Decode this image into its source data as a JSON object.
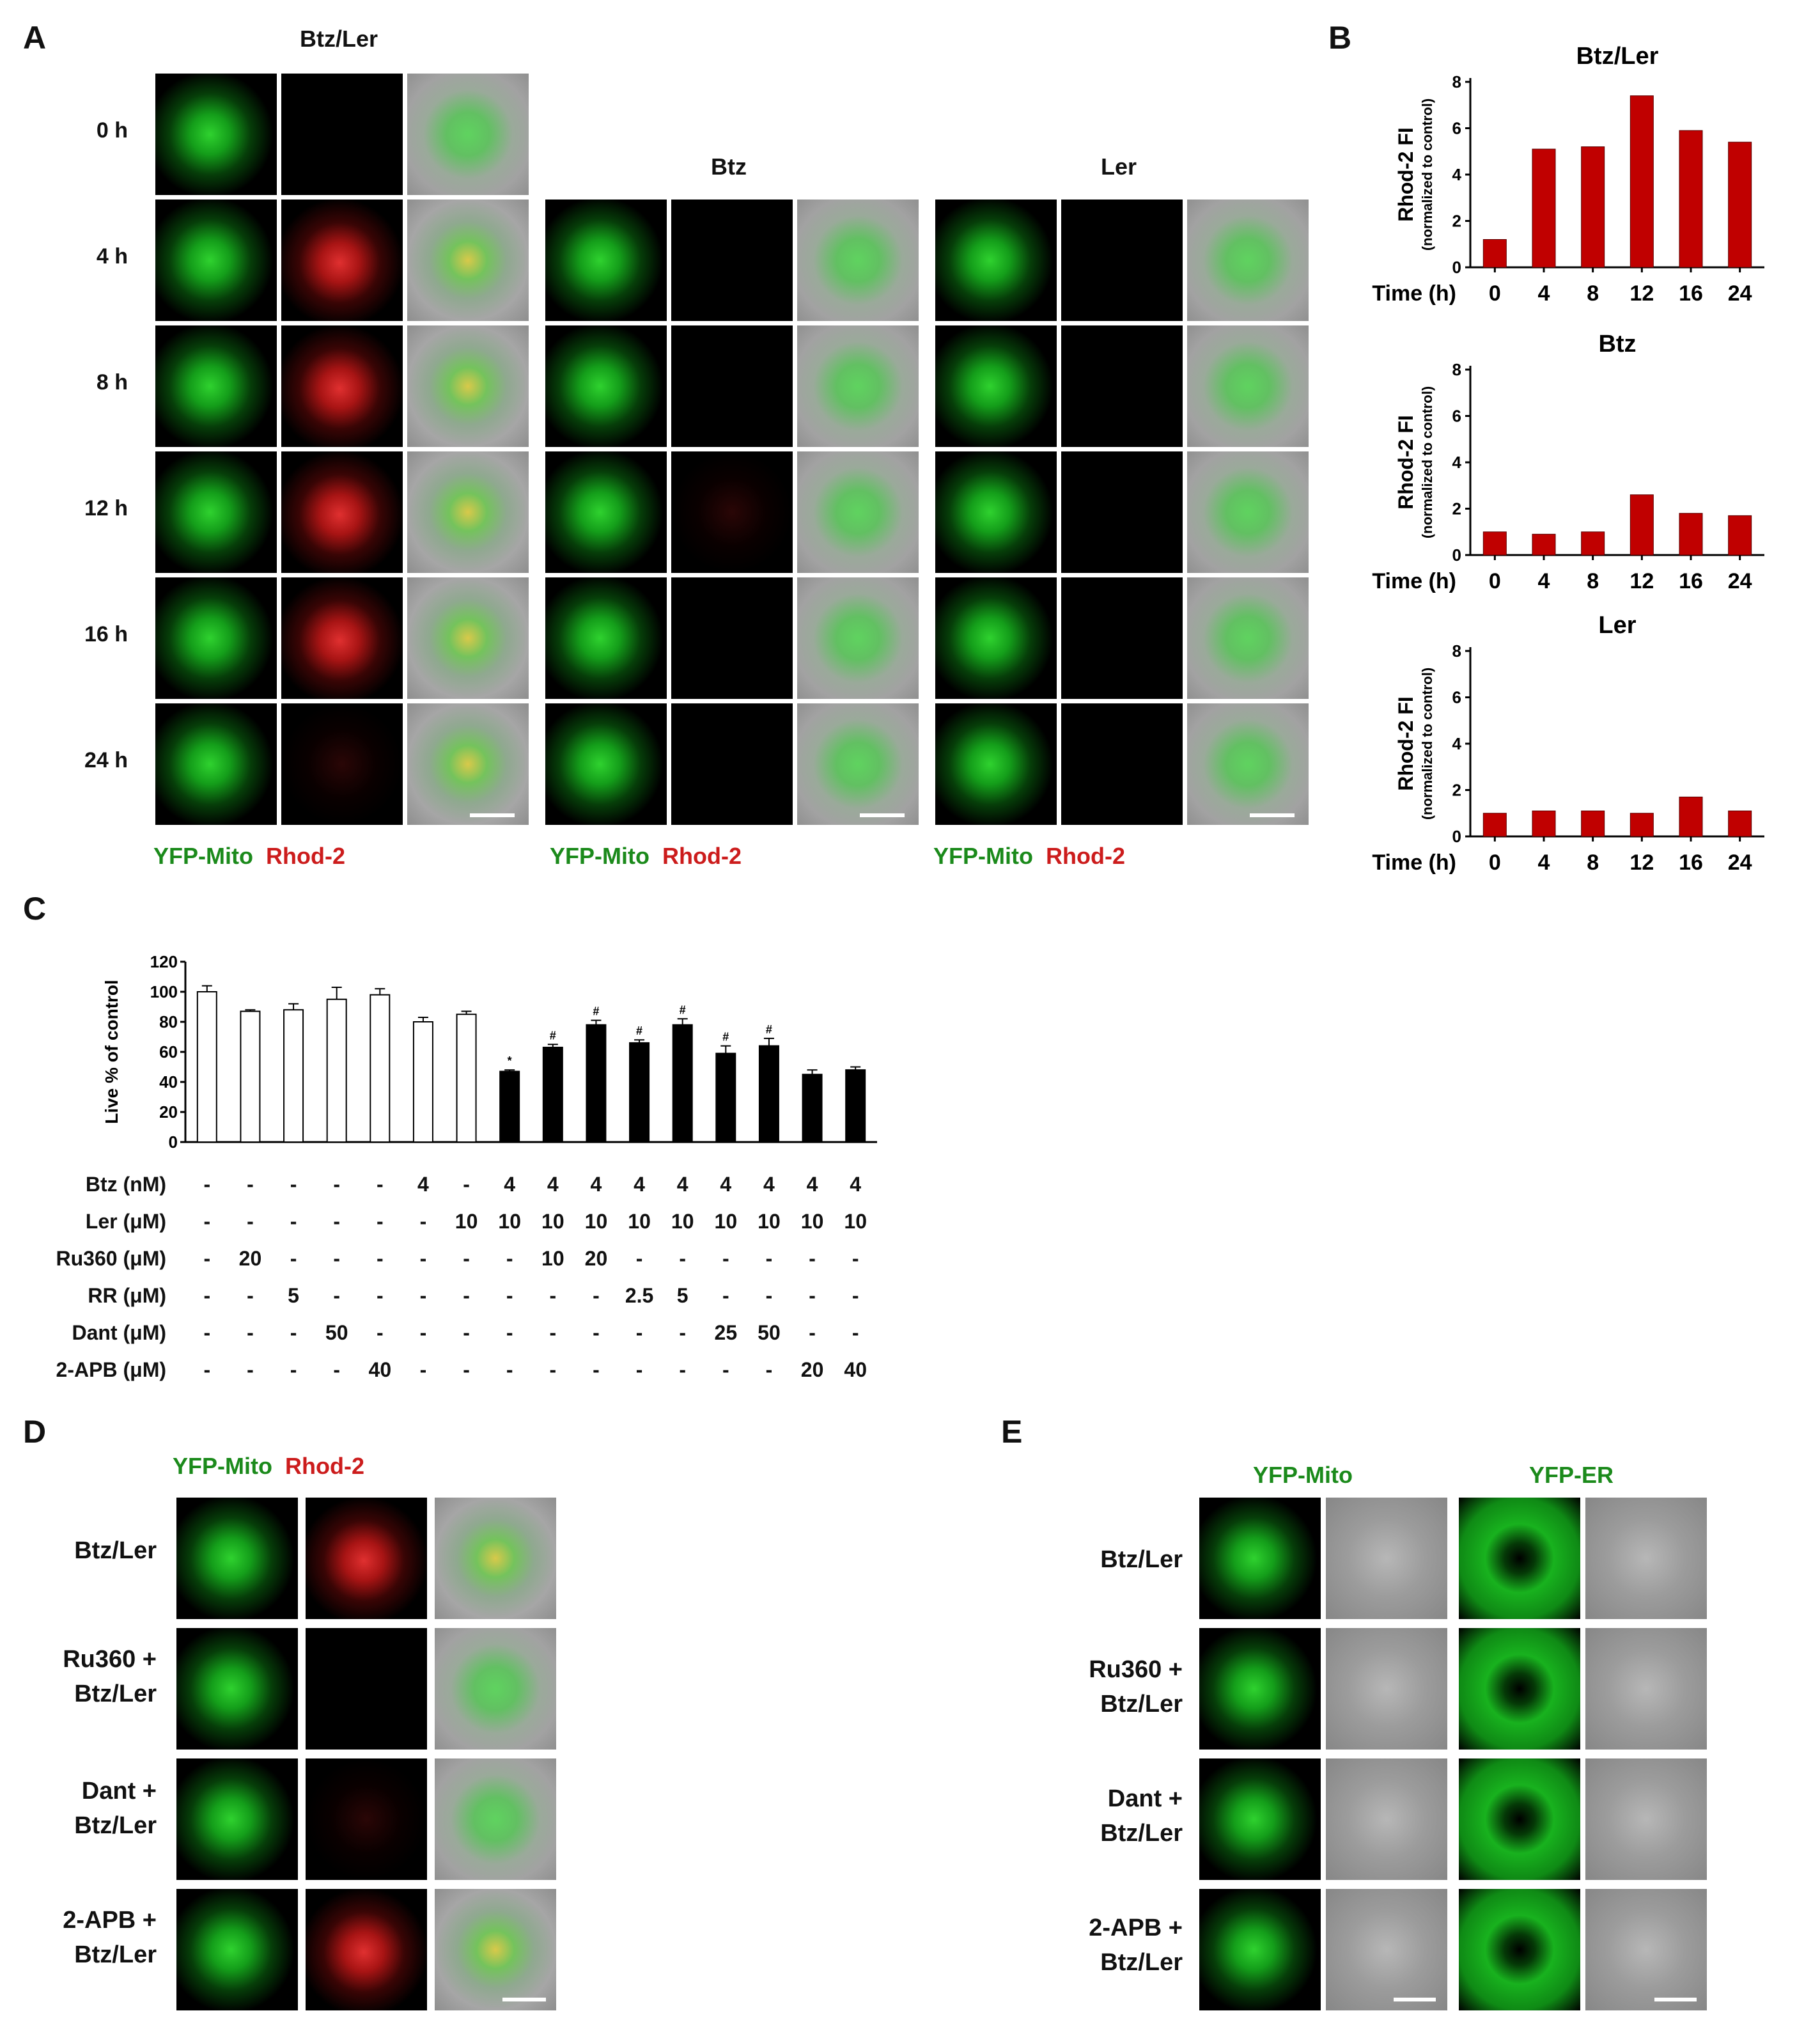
{
  "panels": {
    "A": "A",
    "B": "B",
    "C": "C",
    "D": "D",
    "E": "E"
  },
  "panel_a": {
    "title_btzler": "Btz/Ler",
    "title_btz": "Btz",
    "title_ler": "Ler",
    "time_labels": [
      "0 h",
      "4 h",
      "8 h",
      "12 h",
      "16 h",
      "24 h"
    ],
    "legend_green": "YFP-Mito",
    "legend_red": "Rhod-2"
  },
  "chart_data": [
    {
      "type": "bar",
      "title": "Btz/Ler",
      "ylabel": "Rhod-2 FI",
      "ylabel2": "(normalized to control)",
      "xlabel": "Time (h)",
      "categories": [
        "0",
        "4",
        "8",
        "12",
        "16",
        "24"
      ],
      "values": [
        1.2,
        5.1,
        5.2,
        7.4,
        5.9,
        5.4
      ],
      "ylim": [
        0,
        8
      ],
      "yticks": [
        0,
        2,
        4,
        6,
        8
      ],
      "color": "#c00000"
    },
    {
      "type": "bar",
      "title": "Btz",
      "ylabel": "Rhod-2 FI",
      "ylabel2": "(normalized to control)",
      "xlabel": "Time (h)",
      "categories": [
        "0",
        "4",
        "8",
        "12",
        "16",
        "24"
      ],
      "values": [
        1.0,
        0.9,
        1.0,
        2.6,
        1.8,
        1.7
      ],
      "ylim": [
        0,
        8
      ],
      "yticks": [
        0,
        2,
        4,
        6,
        8
      ],
      "color": "#c00000"
    },
    {
      "type": "bar",
      "title": "Ler",
      "ylabel": "Rhod-2 FI",
      "ylabel2": "(normalized to control)",
      "xlabel": "Time (h)",
      "categories": [
        "0",
        "4",
        "8",
        "12",
        "16",
        "24"
      ],
      "values": [
        1.0,
        1.1,
        1.1,
        1.0,
        1.7,
        1.1
      ],
      "ylim": [
        0,
        8
      ],
      "yticks": [
        0,
        2,
        4,
        6,
        8
      ],
      "color": "#c00000"
    },
    {
      "type": "bar",
      "ylabel": "Live % of control",
      "ylim": [
        0,
        120
      ],
      "yticks": [
        0,
        20,
        40,
        60,
        80,
        100,
        120
      ],
      "values": [
        100,
        87,
        88,
        95,
        98,
        80,
        85,
        47,
        63,
        78,
        66,
        78,
        59,
        64,
        45,
        48
      ],
      "errors": [
        4,
        1,
        4,
        8,
        4,
        3,
        2,
        1,
        2,
        3,
        2,
        4,
        5,
        5,
        3,
        2
      ],
      "fill": [
        "white",
        "white",
        "white",
        "white",
        "white",
        "white",
        "white",
        "black",
        "black",
        "black",
        "black",
        "black",
        "black",
        "black",
        "black",
        "black"
      ],
      "marks": [
        "",
        "",
        "",
        "",
        "",
        "",
        "",
        "*",
        "#",
        "#",
        "#",
        "#",
        "#",
        "#",
        "",
        ""
      ],
      "table": [
        {
          "name": "Btz (nM)",
          "cells": [
            "-",
            "-",
            "-",
            "-",
            "-",
            "4",
            "-",
            "4",
            "4",
            "4",
            "4",
            "4",
            "4",
            "4",
            "4",
            "4"
          ]
        },
        {
          "name": "Ler (μM)",
          "cells": [
            "-",
            "-",
            "-",
            "-",
            "-",
            "-",
            "10",
            "10",
            "10",
            "10",
            "10",
            "10",
            "10",
            "10",
            "10",
            "10"
          ]
        },
        {
          "name": "Ru360 (μM)",
          "cells": [
            "-",
            "20",
            "-",
            "-",
            "-",
            "-",
            "-",
            "-",
            "10",
            "20",
            "-",
            "-",
            "-",
            "-",
            "-",
            "-"
          ]
        },
        {
          "name": "RR (μM)",
          "cells": [
            "-",
            "-",
            "5",
            "-",
            "-",
            "-",
            "-",
            "-",
            "-",
            "-",
            "2.5",
            "5",
            "-",
            "-",
            "-",
            "-"
          ]
        },
        {
          "name": "Dant (μM)",
          "cells": [
            "-",
            "-",
            "-",
            "50",
            "-",
            "-",
            "-",
            "-",
            "-",
            "-",
            "-",
            "-",
            "25",
            "50",
            "-",
            "-"
          ]
        },
        {
          "name": "2-APB (μM)",
          "cells": [
            "-",
            "-",
            "-",
            "-",
            "40",
            "-",
            "-",
            "-",
            "-",
            "-",
            "-",
            "-",
            "-",
            "-",
            "20",
            "40"
          ]
        }
      ]
    }
  ],
  "panel_d": {
    "legend_green": "YFP-Mito",
    "legend_red": "Rhod-2",
    "rows": [
      "Btz/Ler",
      "Ru360 +\nBtz/Ler",
      "Dant +\nBtz/Ler",
      "2-APB +\nBtz/Ler"
    ]
  },
  "panel_e": {
    "col_mito": "YFP-Mito",
    "col_er": "YFP-ER",
    "rows": [
      "Btz/Ler",
      "Ru360 +\nBtz/Ler",
      "Dant +\nBtz/Ler",
      "2-APB +\nBtz/Ler"
    ]
  }
}
